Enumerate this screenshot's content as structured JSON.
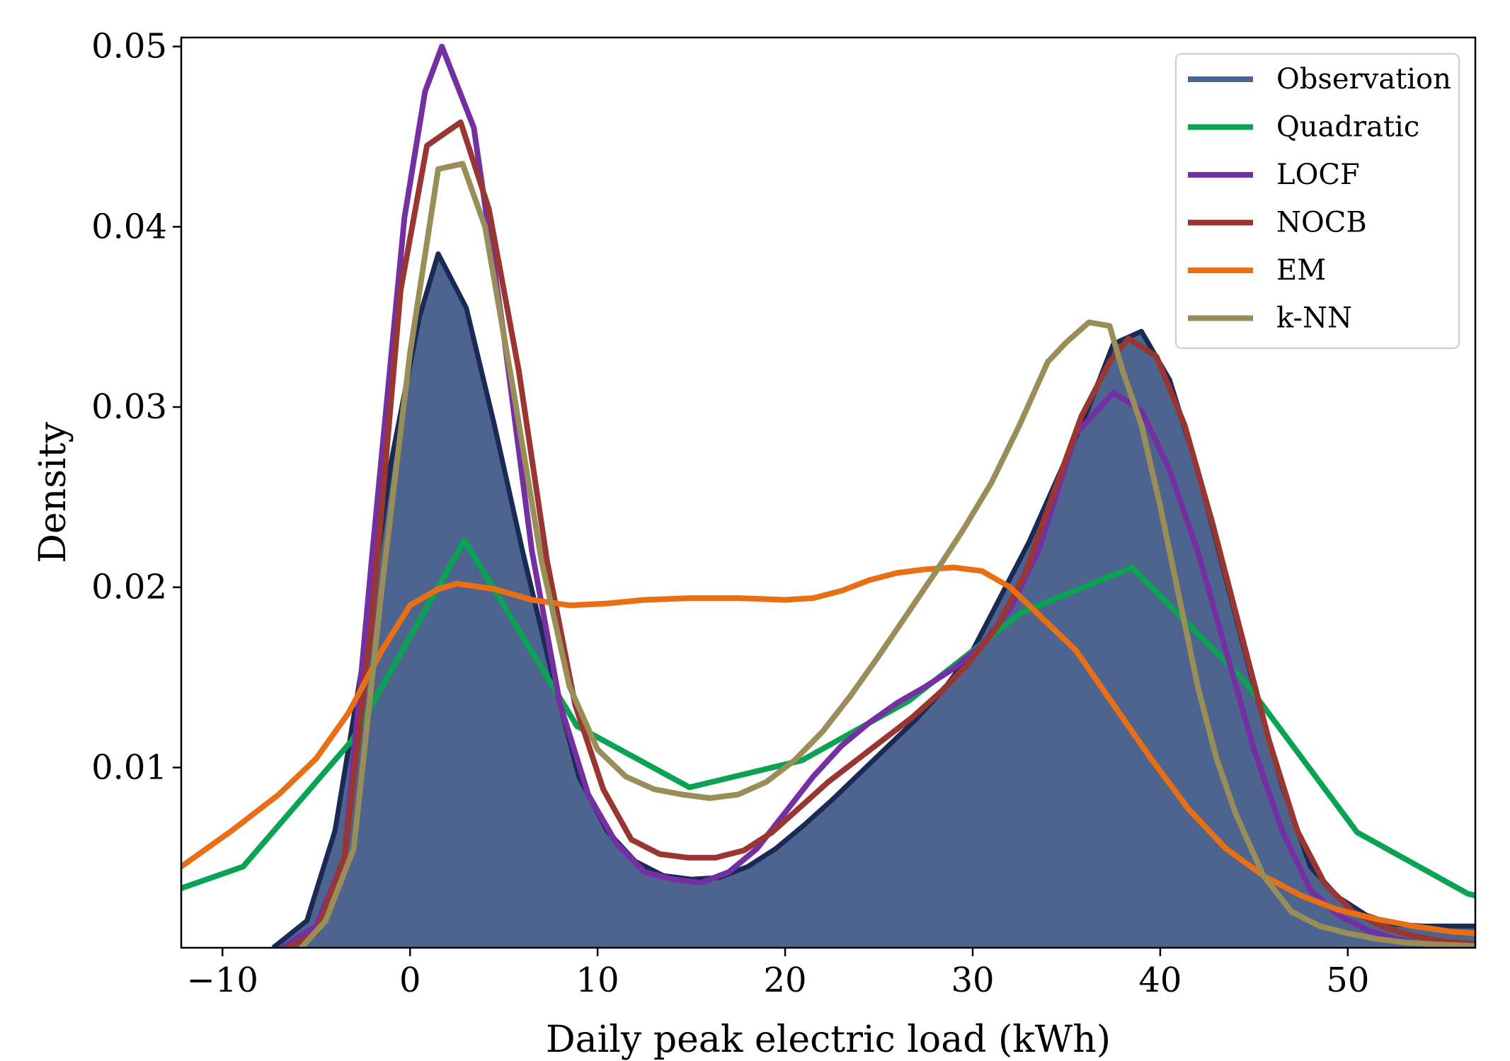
{
  "chart_data": {
    "type": "line",
    "title": "",
    "xlabel": "Daily peak electric load (kWh)",
    "ylabel": "Density",
    "xlim": [
      -12.2,
      56.8
    ],
    "ylim": [
      0.0,
      0.0505
    ],
    "xticks": [
      -10,
      0,
      10,
      20,
      30,
      40,
      50
    ],
    "xtick_labels": [
      "−10",
      "0",
      "10",
      "20",
      "30",
      "40",
      "50"
    ],
    "yticks": [
      0.01,
      0.02,
      0.03,
      0.04,
      0.05
    ],
    "ytick_labels": [
      "0.01",
      "0.02",
      "0.03",
      "0.04",
      "0.05"
    ],
    "grid": false,
    "legend_position": "top-right",
    "series": [
      {
        "name": "Observation",
        "color": "#4d648f",
        "edge_color": "#1a2a55",
        "filled": true,
        "x": [
          -7.3,
          -5.5,
          -4.0,
          -2.5,
          -1.0,
          0.5,
          1.5,
          3.0,
          4.5,
          6.0,
          7.5,
          9.0,
          10.5,
          12.0,
          13.5,
          15.0,
          16.5,
          18.0,
          19.5,
          21.0,
          22.5,
          24.0,
          25.5,
          27.0,
          28.5,
          30.0,
          31.5,
          33.0,
          34.5,
          36.0,
          37.5,
          39.0,
          40.5,
          42.0,
          43.5,
          45.0,
          46.5,
          48.0,
          49.5,
          51.0,
          52.5,
          54.0,
          55.5,
          56.8
        ],
        "y": [
          0.0,
          0.0015,
          0.0065,
          0.016,
          0.027,
          0.035,
          0.0385,
          0.0355,
          0.029,
          0.022,
          0.0155,
          0.0095,
          0.0065,
          0.0048,
          0.004,
          0.0038,
          0.0039,
          0.0045,
          0.0055,
          0.0068,
          0.0082,
          0.0097,
          0.0112,
          0.0127,
          0.0144,
          0.0165,
          0.0195,
          0.0225,
          0.026,
          0.0295,
          0.0335,
          0.0342,
          0.0315,
          0.0265,
          0.0205,
          0.0145,
          0.009,
          0.0045,
          0.0028,
          0.0018,
          0.0013,
          0.0012,
          0.0012,
          0.0012
        ]
      },
      {
        "name": "Quadratic",
        "color": "#0aa353",
        "x": [
          -12.2,
          -8.9,
          -3.1,
          2.9,
          8.9,
          14.9,
          20.9,
          26.6,
          32.6,
          38.5,
          44.5,
          50.5,
          56.4,
          56.8
        ],
        "y": [
          0.0033,
          0.0045,
          0.0115,
          0.0226,
          0.0123,
          0.0089,
          0.0104,
          0.0137,
          0.0186,
          0.0211,
          0.0148,
          0.0064,
          0.003,
          0.0029
        ]
      },
      {
        "name": "LOCF",
        "color": "#7430a2",
        "x": [
          -6.8,
          -5.0,
          -3.5,
          -2.0,
          -0.3,
          0.8,
          1.7,
          3.4,
          5.0,
          6.5,
          8.0,
          9.5,
          11.0,
          12.5,
          14.0,
          15.5,
          17.0,
          18.5,
          20.0,
          21.5,
          23.0,
          24.5,
          26.0,
          27.5,
          29.0,
          30.5,
          32.0,
          33.5,
          35.5,
          37.5,
          39.0,
          40.5,
          42.0,
          43.5,
          45.0,
          46.5,
          48.0,
          49.5,
          51.0,
          52.5,
          54.0,
          56.8
        ],
        "y": [
          0.0,
          0.0012,
          0.005,
          0.022,
          0.0405,
          0.0475,
          0.05,
          0.0455,
          0.034,
          0.022,
          0.0135,
          0.0085,
          0.0058,
          0.0042,
          0.0038,
          0.0036,
          0.0042,
          0.0055,
          0.0075,
          0.0095,
          0.0112,
          0.0125,
          0.0136,
          0.0145,
          0.0155,
          0.0168,
          0.0188,
          0.022,
          0.0285,
          0.0308,
          0.0298,
          0.0265,
          0.022,
          0.0165,
          0.011,
          0.0065,
          0.0032,
          0.0018,
          0.001,
          0.0005,
          0.0002,
          0.0001
        ]
      },
      {
        "name": "NOCB",
        "color": "#9a3632",
        "x": [
          -6.5,
          -5.0,
          -3.5,
          -2.0,
          -0.5,
          0.9,
          2.7,
          4.2,
          5.8,
          7.3,
          8.8,
          10.3,
          11.8,
          13.3,
          14.8,
          16.3,
          17.8,
          19.3,
          20.8,
          22.3,
          23.8,
          25.3,
          26.8,
          28.3,
          29.8,
          31.3,
          32.8,
          34.3,
          35.8,
          37.3,
          38.3,
          39.8,
          41.3,
          42.8,
          44.3,
          45.8,
          47.3,
          48.8,
          50.3,
          51.8,
          53.3,
          54.8,
          56.8
        ],
        "y": [
          0.0,
          0.0008,
          0.005,
          0.0185,
          0.0365,
          0.0445,
          0.0458,
          0.041,
          0.032,
          0.0215,
          0.0135,
          0.0088,
          0.006,
          0.0052,
          0.005,
          0.005,
          0.0054,
          0.0064,
          0.0078,
          0.0092,
          0.0104,
          0.0116,
          0.0128,
          0.0142,
          0.0158,
          0.0178,
          0.0208,
          0.0252,
          0.0295,
          0.0325,
          0.0338,
          0.0328,
          0.029,
          0.0235,
          0.0175,
          0.0115,
          0.0065,
          0.0035,
          0.002,
          0.0012,
          0.0007,
          0.0004,
          0.0002
        ]
      },
      {
        "name": "EM",
        "color": "#e96f14",
        "x": [
          -12.2,
          -9.5,
          -7.0,
          -5.0,
          -3.3,
          -1.5,
          0.0,
          1.5,
          2.5,
          4.5,
          6.5,
          8.5,
          10.5,
          12.5,
          15.0,
          17.5,
          20.0,
          21.5,
          23.0,
          24.5,
          26.0,
          27.5,
          29.0,
          30.5,
          32.0,
          33.5,
          35.5,
          37.5,
          39.5,
          41.5,
          43.5,
          45.5,
          47.5,
          49.5,
          51.5,
          53.5,
          55.5,
          56.8
        ],
        "y": [
          0.0045,
          0.0065,
          0.0085,
          0.0105,
          0.013,
          0.0165,
          0.019,
          0.0199,
          0.0202,
          0.0199,
          0.0193,
          0.019,
          0.0191,
          0.0193,
          0.0194,
          0.0194,
          0.0193,
          0.0194,
          0.0198,
          0.0204,
          0.0208,
          0.021,
          0.0211,
          0.0209,
          0.02,
          0.0185,
          0.0165,
          0.0135,
          0.0105,
          0.0077,
          0.0055,
          0.004,
          0.0029,
          0.0021,
          0.0016,
          0.0012,
          0.0009,
          0.0008
        ]
      },
      {
        "name": "k-NN",
        "color": "#998d58",
        "x": [
          -5.8,
          -4.5,
          -3.0,
          -1.5,
          0.0,
          1.5,
          2.8,
          4.0,
          5.5,
          7.0,
          8.5,
          10.0,
          11.5,
          13.0,
          14.5,
          16.0,
          17.5,
          19.0,
          20.5,
          22.0,
          23.5,
          25.0,
          26.5,
          28.0,
          29.5,
          31.0,
          32.5,
          34.0,
          35.0,
          36.2,
          37.3,
          38.0,
          39.0,
          40.0,
          41.0,
          42.0,
          43.0,
          44.0,
          45.5,
          47.0,
          48.5,
          50.0,
          51.5,
          53.0,
          54.5,
          56.8
        ],
        "y": [
          0.0,
          0.0015,
          0.0055,
          0.02,
          0.033,
          0.0432,
          0.0435,
          0.04,
          0.031,
          0.0215,
          0.0145,
          0.011,
          0.0095,
          0.0088,
          0.0085,
          0.0083,
          0.0085,
          0.0092,
          0.0104,
          0.012,
          0.014,
          0.0162,
          0.0185,
          0.0208,
          0.0232,
          0.0258,
          0.029,
          0.0325,
          0.0336,
          0.0347,
          0.0345,
          0.032,
          0.029,
          0.0245,
          0.0195,
          0.0145,
          0.0105,
          0.0075,
          0.004,
          0.002,
          0.0012,
          0.0008,
          0.0005,
          0.0003,
          0.0002,
          0.0001
        ]
      }
    ]
  }
}
